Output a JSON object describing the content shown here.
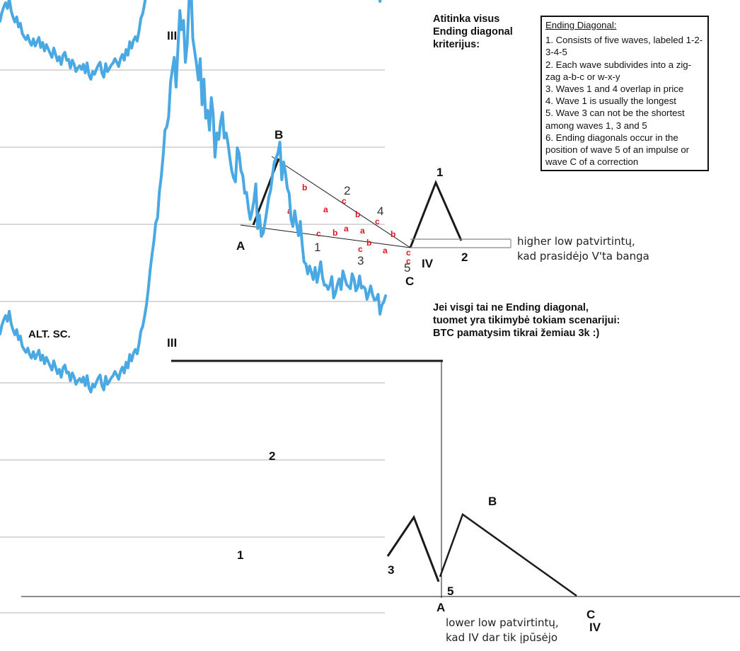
{
  "chart_data": [
    {
      "type": "line",
      "title": "",
      "series": [
        {
          "values": [
            360,
            372,
            380,
            386,
            378,
            392,
            375,
            366,
            359,
            366,
            352,
            357,
            343,
            338,
            334,
            340,
            331,
            326,
            335,
            325,
            331,
            337,
            323,
            330,
            318,
            327,
            321,
            315,
            309,
            322,
            313,
            304,
            310,
            299,
            312,
            316,
            305,
            306,
            294,
            305,
            299,
            289,
            294,
            297,
            292,
            299,
            287,
            301,
            284,
            278,
            289,
            285,
            292,
            298,
            302,
            287,
            281,
            300,
            289,
            293,
            298,
            301,
            307,
            302,
            296,
            307,
            313,
            305,
            320,
            312,
            331,
            322,
            333,
            338,
            332,
            346,
            364,
            371,
            385,
            401,
            423,
            450,
            472,
            491,
            517,
            524,
            561,
            583,
            612,
            648,
            653,
            667,
            716,
            734,
            751,
            709,
            763,
            817,
            790,
            803,
            744,
            770,
            832,
            855,
            778,
            760,
            742,
            719,
            749,
            684,
            720,
            665,
            676,
            648,
            694,
            671,
            610,
            644,
            635,
            659,
            673,
            637,
            644,
            629,
            609,
            591,
            581,
            575,
            623,
            615,
            591,
            584,
            559,
            560,
            538,
            522,
            533,
            549,
            572,
            509,
            528,
            498,
            503,
            518,
            535,
            553,
            563,
            585,
            603,
            609,
            616,
            631,
            578,
            603,
            588,
            566,
            558,
            522,
            512,
            534,
            516,
            499,
            519,
            487,
            462,
            459,
            445,
            456,
            447,
            437,
            454,
            433,
            447,
            462,
            440,
            429,
            429,
            423,
            429,
            441,
            411,
            418,
            430,
            438,
            423,
            449,
            439,
            430,
            427,
            424,
            445,
            437,
            421,
            426,
            442,
            425,
            427,
            424,
            409,
            418,
            428,
            415,
            408,
            409,
            416,
            388,
            401,
            405,
            414
          ]
        }
      ]
    }
  ],
  "labels": {
    "upper": {
      "III": "III",
      "B": "B",
      "A": "A",
      "C": "C",
      "IV": "IV",
      "w1": "1",
      "w2": "2",
      "w3": "3",
      "w4": "4",
      "w5": "5",
      "proj1": "1",
      "proj2": "2",
      "sub_a": "a",
      "sub_b": "b",
      "sub_c": "c"
    },
    "lower": {
      "III": "III",
      "w1": "1",
      "w2": "2",
      "w3": "3",
      "w5": "5",
      "A": "A",
      "B": "B",
      "C": "C",
      "IV": "IV",
      "alt": "ALT. SC."
    }
  },
  "notes": {
    "criteria_match": [
      "Atitinka visus",
      "Ending diagonal",
      "kriterijus:"
    ],
    "alt_scenario": [
      "Jei visgi tai ne Ending diagonal,",
      "tuomet yra tikimybė tokiam scenarijui:",
      "BTC pamatysim tikrai žemiau 3k :)"
    ],
    "higher_low": [
      "higher low patvirtintų,",
      "kad prasidėjo V'ta banga"
    ],
    "lower_low": [
      "lower low patvirtintų,",
      "kad IV dar tik įpūsėjo"
    ]
  },
  "criteria_box": {
    "title": "Ending Diagonal:",
    "items": [
      "1. Consists of five waves, labeled 1-2-3-4-5",
      "2. Each wave subdivides into a zig-zag a-b-c or w-x-y",
      "3. Waves 1 and 4 overlap in price",
      "4. Wave 1 is usually the longest",
      "5. Wave 3 can not be the shortest among waves 1, 3 and 5",
      "6. Ending diagonals occur in the position of wave 5 of an impulse or wave C of a correction"
    ]
  },
  "colors": {
    "price_line": "#4aa8e2",
    "grid": "#d9d9d9",
    "annotation": "#1a1a1a",
    "subwave": "#e0141e"
  }
}
